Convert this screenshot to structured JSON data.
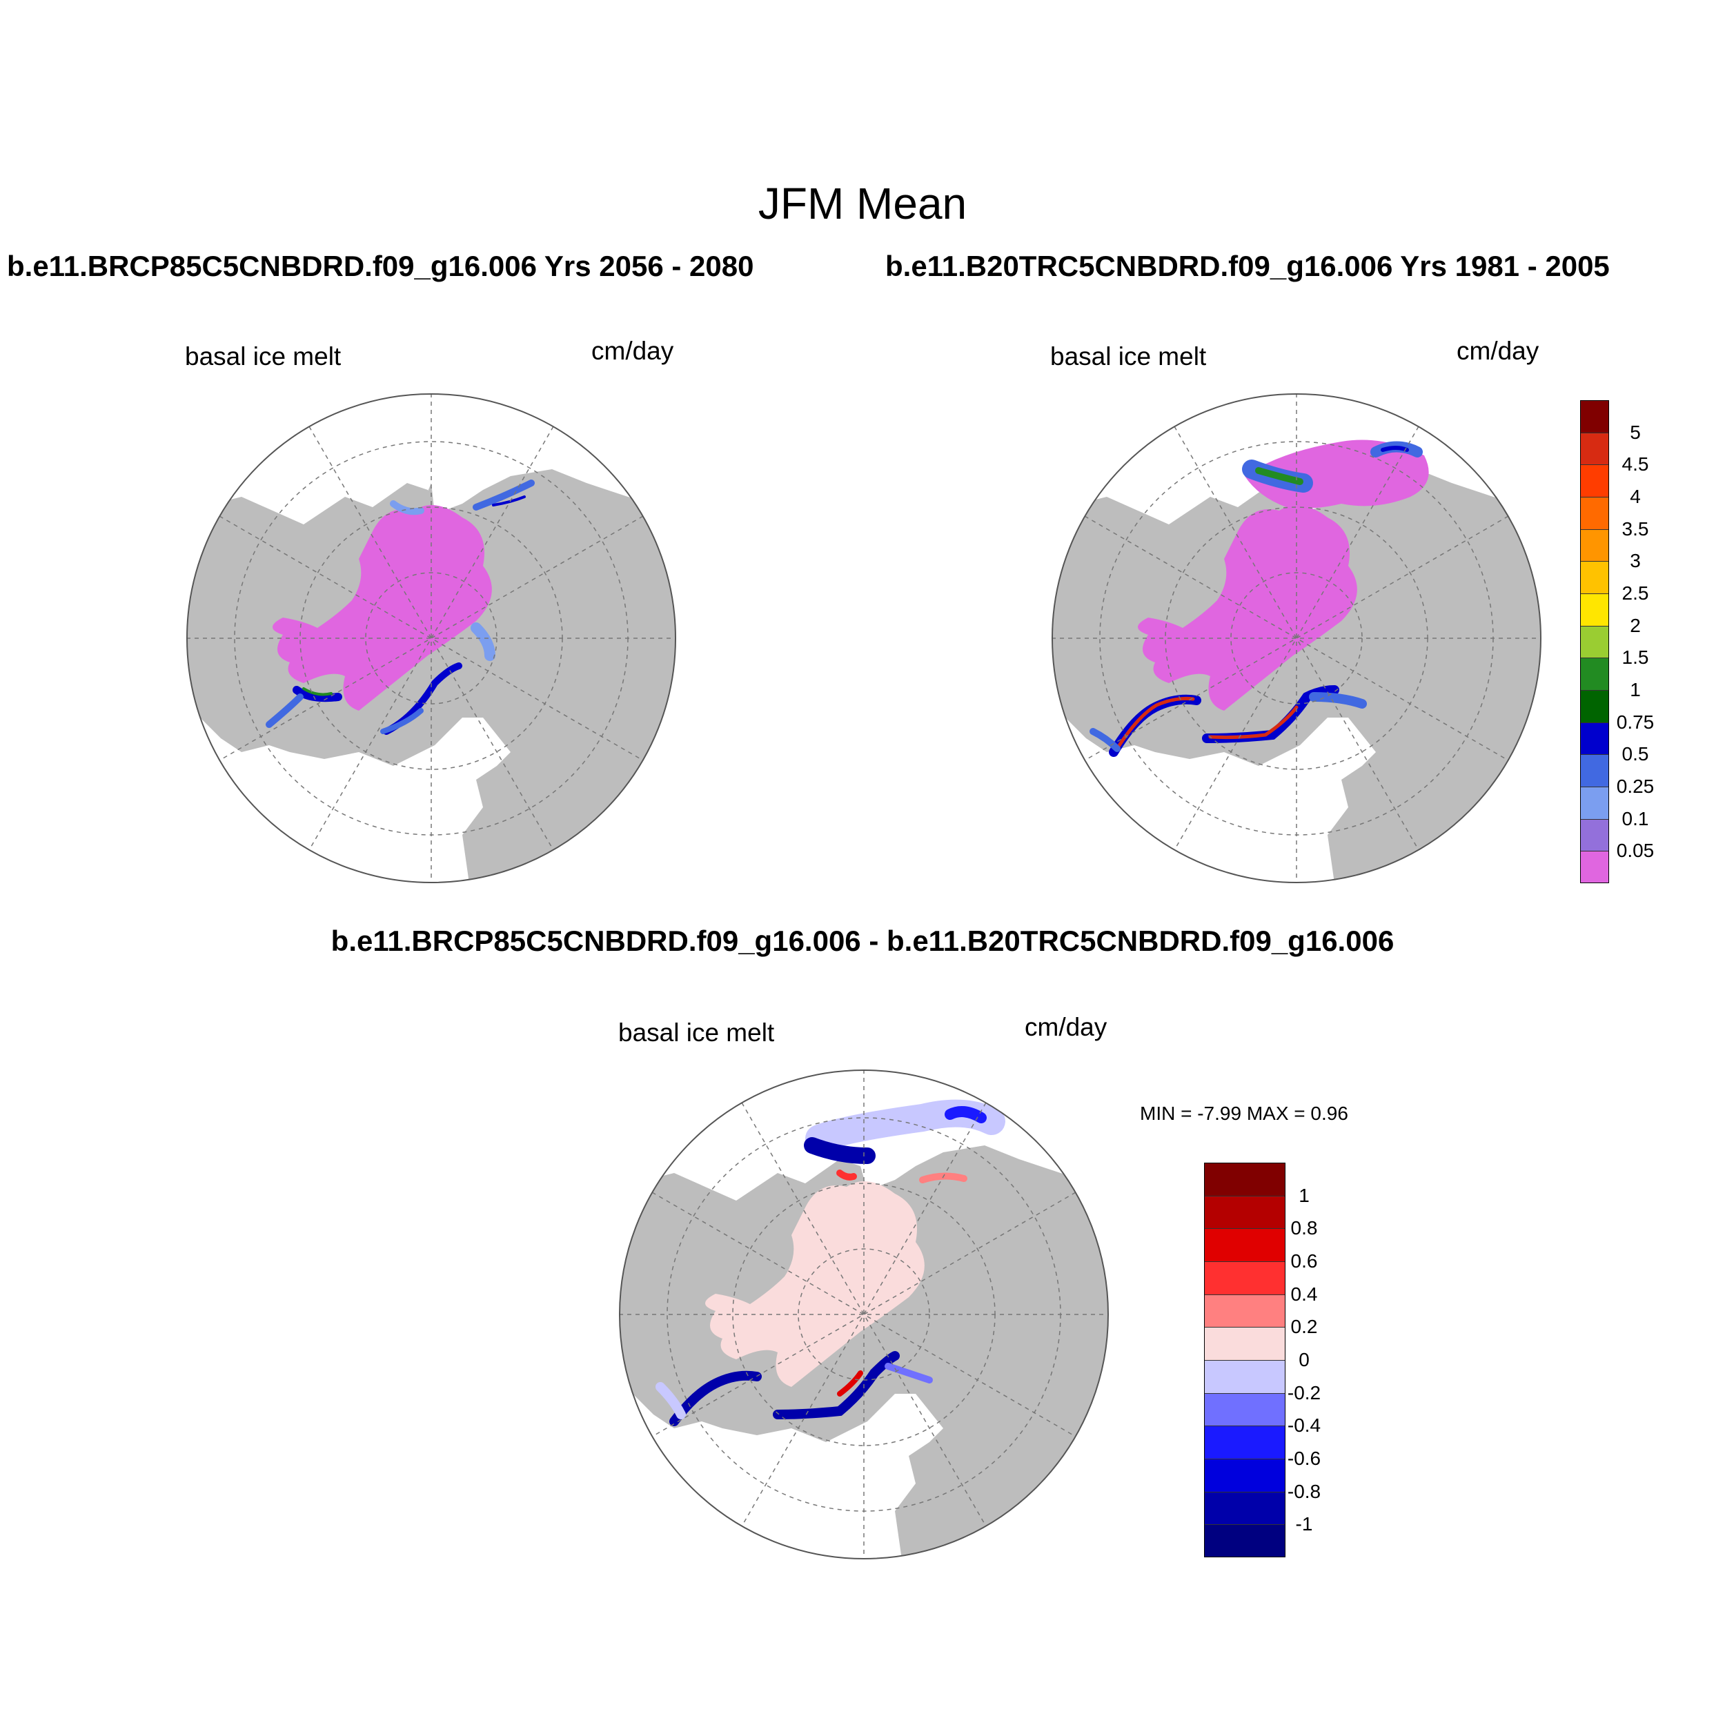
{
  "title": "JFM Mean",
  "panels": [
    {
      "case": "b.e11.BRCP85C5CNBDRD.f09_g16.006  Yrs 2056 - 2080",
      "left_label": "basal ice melt",
      "right_label": "cm/day"
    },
    {
      "case": "b.e11.B20TRC5CNBDRD.f09_g16.006  Yrs 1981 - 2005",
      "left_label": "basal ice melt",
      "right_label": "cm/day"
    }
  ],
  "difference": {
    "title": "b.e11.BRCP85C5CNBDRD.f09_g16.006 - b.e11.B20TRC5CNBDRD.f09_g16.006",
    "left_label": "basal ice melt",
    "right_label": "cm/day",
    "minmax": "MIN =  -7.99 MAX =   0.96"
  },
  "colors": {
    "land": "#bdbdbd",
    "ocean_nodata": "#ffffff",
    "low_melt": "#e066e0",
    "diff_near_zero": "#fadcdc"
  },
  "legend_main": {
    "labels": [
      "5",
      "4.5",
      "4",
      "3.5",
      "3",
      "2.5",
      "2",
      "1.5",
      "1",
      "0.75",
      "0.5",
      "0.25",
      "0.1",
      "0.05"
    ],
    "colors": [
      "#800000",
      "#d72b12",
      "#ff3d00",
      "#ff6a00",
      "#ff9500",
      "#ffc200",
      "#ffe600",
      "#9acd32",
      "#228b22",
      "#006400",
      "#0000cd",
      "#4169e1",
      "#7b9ef0",
      "#9370db",
      "#e066e0"
    ]
  },
  "legend_diff": {
    "labels": [
      "1",
      "0.8",
      "0.6",
      "0.4",
      "0.2",
      "0",
      "-0.2",
      "-0.4",
      "-0.6",
      "-0.8",
      "-1"
    ],
    "colors": [
      "#800000",
      "#b40000",
      "#e00000",
      "#ff3030",
      "#ff8080",
      "#fadcdc",
      "#c8c8ff",
      "#7070ff",
      "#1a1aff",
      "#0000dd",
      "#0000aa",
      "#000080"
    ]
  }
}
